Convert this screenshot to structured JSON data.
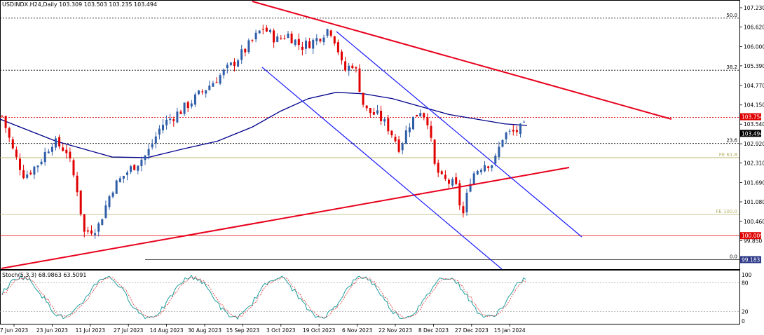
{
  "header": {
    "symbol_timeframe": "USDINDX.H24,Daily",
    "ohlc": "103.309 103.503 103.235 103.494"
  },
  "stoch_panel": {
    "label": "Stoch(5,3,3) 68.9863 63.5091",
    "levels": [
      "80",
      "20"
    ],
    "scale": [
      "100",
      "0"
    ]
  },
  "price_axis": {
    "ticks": [
      "107.230",
      "106.620",
      "106.000",
      "105.390",
      "104.770",
      "104.150",
      "103.540",
      "102.920",
      "102.310",
      "101.690",
      "101.080",
      "100.460",
      "99.850"
    ],
    "tick_values": [
      107.23,
      106.62,
      106.0,
      105.39,
      104.77,
      104.15,
      103.54,
      102.92,
      102.31,
      101.69,
      101.08,
      100.46,
      99.85
    ]
  },
  "time_axis": {
    "labels": [
      "7 Jun 2023",
      "23 Jun 2023",
      "11 Jul 2023",
      "27 Jul 2023",
      "14 Aug 2023",
      "30 Aug 2023",
      "15 Sep 2023",
      "3 Oct 2023",
      "19 Oct 2023",
      "6 Nov 2023",
      "22 Nov 2023",
      "8 Dec 2023",
      "27 Dec 2023",
      "15 Jan 2024"
    ]
  },
  "price_labels": {
    "current": "103.494",
    "resistance": "103.754",
    "support": "100.009",
    "low_box": "99.183"
  },
  "level_labels": {
    "fib_50": "50.0",
    "fib_38": "38.2",
    "fib_23": "23.6",
    "fib_0": "0.0",
    "fe_61": "FE 61.8",
    "fe_100": "FE 100.0"
  },
  "colors": {
    "bull": "#2f5ea8",
    "bear": "#e00000",
    "ma": "#00008b",
    "red_trend": "#e8001c",
    "blue_channel": "#1a1aff",
    "fe_line": "#b5b36a",
    "stoch_main": "#1ea0a0",
    "stoch_signal": "#e03030"
  },
  "chart_data": {
    "type": "candlestick",
    "symbol": "USDINDX.H24",
    "timeframe": "Daily",
    "y_range": [
      99.2,
      107.3
    ],
    "x_range": [
      "2023-06-07",
      "2024-01-19"
    ],
    "last_close": 103.494,
    "horizontal_levels": [
      {
        "label": "50.0",
        "value": 106.9
      },
      {
        "label": "38.2",
        "value": 105.25
      },
      {
        "label": "103.754",
        "value": 103.754
      },
      {
        "label": "23.6",
        "value": 102.93
      },
      {
        "label": "FE 61.8",
        "value": 102.48
      },
      {
        "label": "FE 100.0",
        "value": 100.68
      },
      {
        "label": "100.009",
        "value": 100.009
      },
      {
        "label": "0.0",
        "value": 99.25
      }
    ],
    "stochastic": {
      "name": "Stoch(5,3,3)",
      "main": 68.9863,
      "signal": 63.5091,
      "levels": [
        80,
        20
      ]
    }
  }
}
